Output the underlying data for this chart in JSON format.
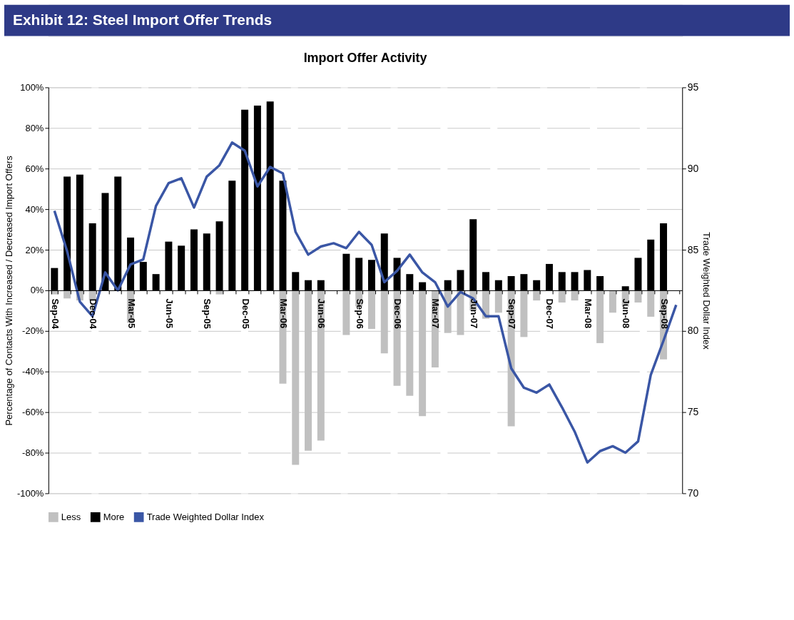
{
  "chart_data": {
    "type": "bar",
    "title": "Exhibit 12: Steel Import Offer Trends",
    "subtitle": "Import Offer Activity",
    "ylabel": "Percentage of Contacts With Increased / Decreased Import Offers",
    "y2label": "Trade Weighted Dollar Index",
    "categories": [
      "Sep-04",
      null,
      null,
      "Dec-04",
      null,
      null,
      "Mar-05",
      null,
      null,
      "Jun-05",
      null,
      null,
      "Sep-05",
      null,
      null,
      "Dec-05",
      null,
      null,
      "Mar-06",
      null,
      null,
      "Jun-06",
      null,
      null,
      "Sep-06",
      null,
      null,
      "Dec-06",
      null,
      null,
      "Mar-07",
      null,
      null,
      "Jun-07",
      null,
      null,
      "Sep-07",
      null,
      null,
      "Dec-07",
      null,
      null,
      "Mar-08",
      null,
      null,
      "Jun-08",
      null,
      null,
      "Sep-08",
      null
    ],
    "series": [
      {
        "name": "Less",
        "color": "#c0c0c0",
        "values": [
          -2,
          -4,
          -5,
          -5,
          null,
          null,
          -16,
          null,
          null,
          null,
          null,
          null,
          null,
          -2,
          null,
          null,
          null,
          null,
          -46,
          -86,
          -79,
          -74,
          null,
          -22,
          -8,
          -19,
          -31,
          -47,
          -52,
          -62,
          -38,
          -21,
          -22,
          -10,
          -14,
          -11,
          -67,
          -23,
          -5,
          null,
          -6,
          -5,
          null,
          -26,
          -11,
          -8,
          -6,
          -13,
          -34,
          null
        ]
      },
      {
        "name": "More",
        "color": "#000000",
        "values": [
          11,
          56,
          57,
          33,
          48,
          56,
          26,
          14,
          8,
          24,
          22,
          30,
          28,
          34,
          54,
          89,
          91,
          93,
          54,
          9,
          5,
          5,
          null,
          18,
          16,
          15,
          28,
          16,
          8,
          4,
          null,
          5,
          10,
          35,
          9,
          5,
          7,
          8,
          5,
          13,
          9,
          9,
          10,
          7,
          null,
          2,
          16,
          25,
          33,
          null
        ]
      },
      {
        "name": "Trade Weighted Dollar Index",
        "type": "line",
        "axis": "y2",
        "color": "#3a56a5",
        "values": [
          87.4,
          84.9,
          81.8,
          80.9,
          83.6,
          82.5,
          84.1,
          84.4,
          87.7,
          89.1,
          89.4,
          87.6,
          89.5,
          90.2,
          91.6,
          91.1,
          88.9,
          90.1,
          89.7,
          86.1,
          84.7,
          85.2,
          85.4,
          85.1,
          86.1,
          85.3,
          83.0,
          83.7,
          84.7,
          83.6,
          83.0,
          81.5,
          82.4,
          82.0,
          80.9,
          80.9,
          77.7,
          76.5,
          76.2,
          76.7,
          75.3,
          73.8,
          71.9,
          72.6,
          72.9,
          72.5,
          73.2,
          77.3,
          79.4,
          81.6
        ]
      }
    ],
    "ylim": [
      -100,
      100
    ],
    "yticks": [
      {
        "value": -100,
        "label": "-100%"
      },
      {
        "value": -80,
        "label": "-80%"
      },
      {
        "value": -60,
        "label": "-60%"
      },
      {
        "value": -40,
        "label": "-40%"
      },
      {
        "value": -20,
        "label": "-20%"
      },
      {
        "value": 0,
        "label": "0%"
      },
      {
        "value": 20,
        "label": "20%"
      },
      {
        "value": 40,
        "label": "40%"
      },
      {
        "value": 60,
        "label": "60%"
      },
      {
        "value": 80,
        "label": "80%"
      },
      {
        "value": 100,
        "label": "100%"
      }
    ],
    "y2lim": [
      70,
      95
    ],
    "y2ticks": [
      70,
      75,
      80,
      85,
      90,
      95
    ],
    "stacked": true,
    "grid": "y",
    "legend": "bottom",
    "line_style": "solid",
    "marker": "none"
  }
}
